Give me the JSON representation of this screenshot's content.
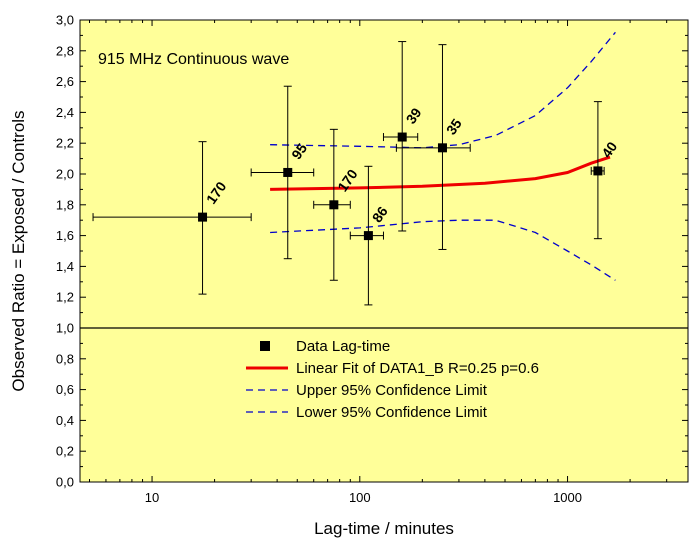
{
  "chart_data": {
    "type": "scatter",
    "title": "",
    "annotation": "915 MHz Continuous wave",
    "xlabel": "Lag-time / minutes",
    "ylabel": "Observed Ratio = Exposed / Controls",
    "x_scale": "log",
    "xlim": [
      4.5,
      3800
    ],
    "ylim": [
      0,
      3.0
    ],
    "x_ticks": [
      10,
      100,
      1000
    ],
    "x_tick_labels": [
      "10",
      "100",
      "1000"
    ],
    "y_ticks": [
      0,
      0.2,
      0.4,
      0.6,
      0.8,
      1.0,
      1.2,
      1.4,
      1.6,
      1.8,
      2.0,
      2.2,
      2.4,
      2.6,
      2.8,
      3.0
    ],
    "y_tick_labels": [
      "0,0",
      "0,2",
      "0,4",
      "0,6",
      "0,8",
      "1,0",
      "1,2",
      "1,4",
      "1,6",
      "1,8",
      "2,0",
      "2,2",
      "2,4",
      "2,6",
      "2,8",
      "3,0"
    ],
    "reference_line_y": 1.0,
    "grid": false,
    "legend_position": "lower-center",
    "colors": {
      "background": "#ffff99",
      "data": "#000000",
      "fit": "#ee0000",
      "confidence": "#0000cc",
      "reference": "#000000"
    },
    "legend": [
      {
        "label": "Data Lag-time",
        "style": "square-marker"
      },
      {
        "label": "Linear Fit of DATA1_B R=0.25 p=0.6",
        "style": "solid-red"
      },
      {
        "label": "Upper 95% Confidence Limit",
        "style": "dashed-blue"
      },
      {
        "label": "Lower 95% Confidence Limit",
        "style": "dashed-blue"
      }
    ],
    "points": [
      {
        "x": 17.5,
        "y": 1.72,
        "xerr": [
          5.2,
          30
        ],
        "yerr": [
          1.22,
          2.21
        ],
        "label": "170"
      },
      {
        "x": 45,
        "y": 2.01,
        "xerr": [
          30,
          60
        ],
        "yerr": [
          1.45,
          2.57
        ],
        "label": "95"
      },
      {
        "x": 75,
        "y": 1.8,
        "xerr": [
          60,
          90
        ],
        "yerr": [
          1.31,
          2.29
        ],
        "label": "170"
      },
      {
        "x": 110,
        "y": 1.6,
        "xerr": [
          90,
          130
        ],
        "yerr": [
          1.15,
          2.05
        ],
        "label": "86"
      },
      {
        "x": 160,
        "y": 2.24,
        "xerr": [
          130,
          190
        ],
        "yerr": [
          1.63,
          2.86
        ],
        "label": "39"
      },
      {
        "x": 250,
        "y": 2.17,
        "xerr": [
          150,
          340
        ],
        "yerr": [
          1.51,
          2.84
        ],
        "label": "35"
      },
      {
        "x": 1400,
        "y": 2.02,
        "xerr": [
          1300,
          1500
        ],
        "yerr": [
          1.58,
          2.47
        ],
        "label": "40"
      }
    ],
    "fit_line": {
      "name": "Linear Fit of DATA1_B R=0.25 p=0.6",
      "x": [
        37,
        100,
        200,
        400,
        700,
        1000,
        1300,
        1600
      ],
      "y": [
        1.9,
        1.91,
        1.92,
        1.94,
        1.97,
        2.01,
        2.07,
        2.11
      ]
    },
    "upper_confidence": {
      "name": "Upper 95% Confidence Limit",
      "x": [
        37,
        100,
        200,
        300,
        450,
        700,
        1000,
        1300,
        1700
      ],
      "y": [
        2.19,
        2.18,
        2.17,
        2.19,
        2.25,
        2.38,
        2.56,
        2.73,
        2.92
      ]
    },
    "lower_confidence": {
      "name": "Lower 95% Confidence Limit",
      "x": [
        37,
        100,
        200,
        300,
        450,
        700,
        1000,
        1300,
        1700
      ],
      "y": [
        1.62,
        1.65,
        1.69,
        1.7,
        1.7,
        1.62,
        1.5,
        1.41,
        1.31
      ]
    }
  }
}
